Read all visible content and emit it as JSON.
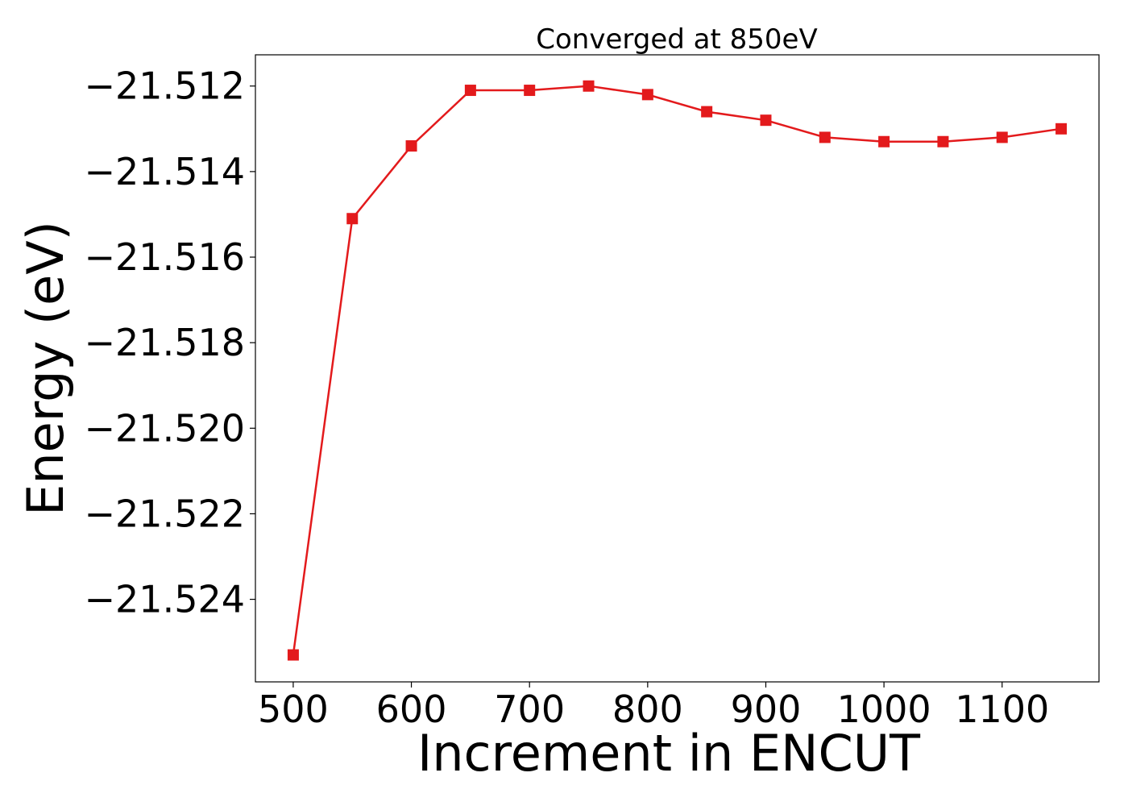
{
  "chart_data": {
    "type": "line",
    "title": "Converged at 850eV",
    "xlabel": "Increment in ENCUT",
    "ylabel": "Energy (eV)",
    "x": [
      500,
      550,
      600,
      650,
      700,
      750,
      800,
      850,
      900,
      950,
      1000,
      1050,
      1100,
      1150
    ],
    "series": [
      {
        "values": [
          -21.5253,
          -21.5151,
          -21.5134,
          -21.5121,
          -21.5121,
          -21.512,
          -21.5122,
          -21.5126,
          -21.5128,
          -21.5132,
          -21.5133,
          -21.5133,
          -21.5132,
          -21.513
        ],
        "color": "#e31a1c",
        "marker": "square"
      }
    ],
    "xlim": [
      468,
      1182
    ],
    "ylim": [
      -21.52593,
      -21.51127
    ],
    "xticks": [
      500,
      600,
      700,
      800,
      900,
      1000,
      1100
    ],
    "xtick_labels": [
      "500",
      "600",
      "700",
      "800",
      "900",
      "1000",
      "1100"
    ],
    "yticks": [
      -21.512,
      -21.514,
      -21.516,
      -21.518,
      -21.52,
      -21.522,
      -21.524
    ],
    "ytick_labels": [
      "−21.512",
      "−21.514",
      "−21.516",
      "−21.518",
      "−21.520",
      "−21.522",
      "−21.524"
    ],
    "grid": false,
    "legend": "none"
  }
}
